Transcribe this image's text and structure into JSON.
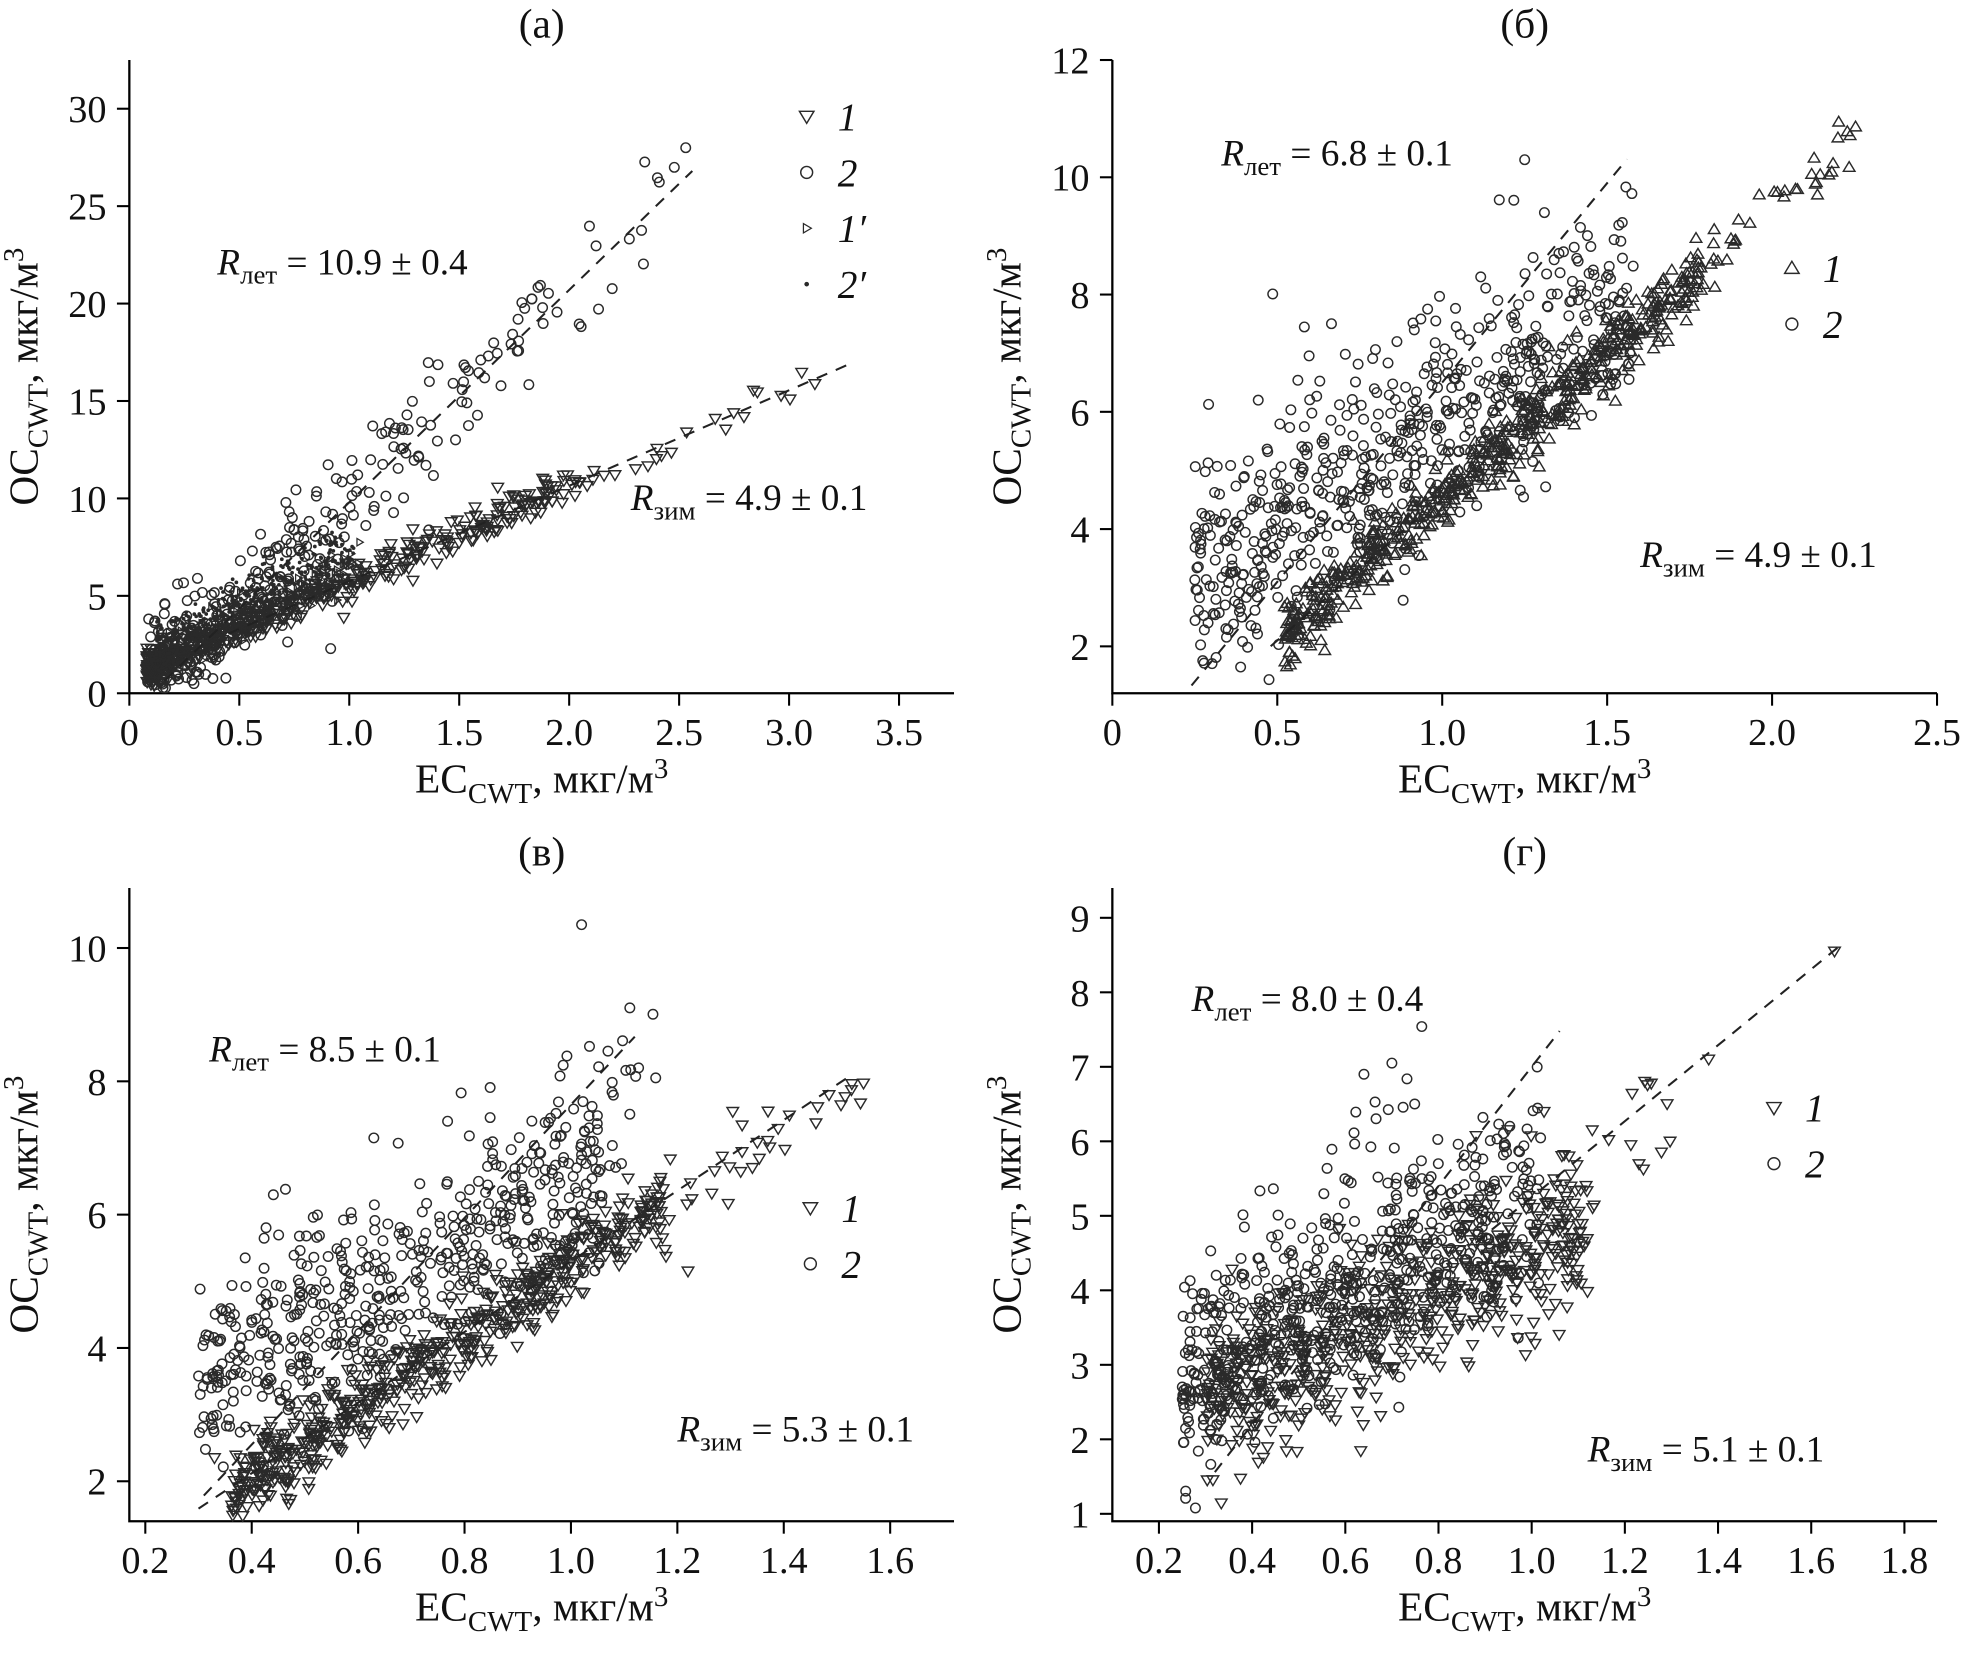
{
  "figure": {
    "colors": {
      "ink": "#111111",
      "marker": "#2a2a2a",
      "line": "#222222",
      "axis": "#000000"
    }
  },
  "chart_data": [
    {
      "type": "scatter",
      "name": "a",
      "title": "(а)",
      "xlabel": {
        "pre": "EC",
        "sub": "CWT",
        "post": ", мкг/м",
        "sup": "3"
      },
      "ylabel": {
        "pre": "OC",
        "sub": "CWT",
        "post": ", мкг/м",
        "sup": "3"
      },
      "xlim": [
        0,
        3.75
      ],
      "ylim": [
        0,
        32.5
      ],
      "xticks": [
        "0",
        "0.5",
        "1.0",
        "1.5",
        "2.0",
        "2.5",
        "3.0",
        "3.5"
      ],
      "yticks": [
        "0",
        "5",
        "10",
        "15",
        "20",
        "25",
        "30"
      ],
      "annotations": [
        {
          "prefix": "R",
          "sub": "лет",
          "rest": " = 10.9 ± 0.4",
          "x": 0.4,
          "y": 21.5
        },
        {
          "prefix": "R",
          "sub": "зим",
          "rest": " = 4.9 ± 0.1",
          "x": 2.28,
          "y": 9.4
        }
      ],
      "lines": [
        {
          "slope": 10.9,
          "intercept": -1.1,
          "x1": 0.16,
          "x2": 2.56
        },
        {
          "slope": 4.9,
          "intercept": 0.85,
          "x1": 0.45,
          "x2": 3.28
        }
      ],
      "legend": {
        "x": 3.08,
        "y": 29.6,
        "items": [
          {
            "marker": "triangle-down",
            "label": "1"
          },
          {
            "marker": "circle",
            "label": "2"
          },
          {
            "marker": "triangle-right",
            "label": "1′"
          },
          {
            "marker": "dot",
            "label": "2′"
          }
        ]
      },
      "clusters": [
        {
          "marker": "circle",
          "seed": 13,
          "n": 240,
          "x0": 0.08,
          "x1": 1.92,
          "bias": 1.8,
          "slope": 10.9,
          "intercept": -1.0,
          "noise": 1.5
        },
        {
          "marker": "circle",
          "seed": 14,
          "n": 14,
          "x0": 1.9,
          "x1": 2.56,
          "bias": 1,
          "slope": 10.9,
          "intercept": -1.6,
          "noise": 1.2
        },
        {
          "marker": "circle",
          "seed": 15,
          "n": 90,
          "x0": 0.1,
          "x1": 1.0,
          "bias": 1.4,
          "slope": 6.5,
          "intercept": 1.2,
          "noise": 1.4
        },
        {
          "marker": "triangle-down",
          "seed": 11,
          "n": 480,
          "x0": 0.08,
          "x1": 2.05,
          "bias": 1.7,
          "slope": 4.9,
          "intercept": 0.8,
          "noise": 0.45
        },
        {
          "marker": "triangle-down",
          "seed": 12,
          "n": 22,
          "x0": 2.05,
          "x1": 3.12,
          "bias": 1,
          "slope": 4.9,
          "intercept": 0.8,
          "noise": 0.35
        },
        {
          "marker": "triangle-right",
          "seed": 16,
          "n": 150,
          "x0": 0.15,
          "x1": 1.05,
          "bias": 1.3,
          "slope": 5.2,
          "intercept": 1.2,
          "noise": 0.55
        },
        {
          "marker": "dot",
          "seed": 17,
          "n": 480,
          "x0": 0.12,
          "x1": 1.02,
          "bias": 1.35,
          "slope": 5.8,
          "intercept": 1.5,
          "noise": 0.7
        }
      ],
      "extra_points": [
        {
          "marker": "circle",
          "x": 2.53,
          "y": 28.0
        }
      ]
    },
    {
      "type": "scatter",
      "name": "b",
      "title": "(б)",
      "xlabel": {
        "pre": "EC",
        "sub": "CWT",
        "post": ", мкг/м",
        "sup": "3"
      },
      "ylabel": {
        "pre": "OC",
        "sub": "CWT",
        "post": ", мкг/м",
        "sup": "3"
      },
      "xlim": [
        0,
        2.5
      ],
      "ylim": [
        1.2,
        12
      ],
      "xticks": [
        "0",
        "0.5",
        "1.0",
        "1.5",
        "2.0",
        "2.5"
      ],
      "yticks": [
        "2",
        "4",
        "6",
        "8",
        "10",
        "12"
      ],
      "annotations": [
        {
          "prefix": "R",
          "sub": "лет",
          "rest": " = 6.8 ± 0.1",
          "x": 0.33,
          "y": 10.2
        },
        {
          "prefix": "R",
          "sub": "зим",
          "rest": " = 4.9 ± 0.1",
          "x": 1.6,
          "y": 3.35
        }
      ],
      "lines": [
        {
          "slope": 6.8,
          "intercept": -0.3,
          "x1": 0.24,
          "x2": 1.56
        },
        {
          "slope": 4.9,
          "intercept": -0.35,
          "x1": 0.48,
          "x2": 0.92
        }
      ],
      "legend": {
        "x": 2.06,
        "y": 8.45,
        "items": [
          {
            "marker": "triangle-up",
            "label": "1"
          },
          {
            "marker": "circle",
            "label": "2"
          }
        ]
      },
      "clusters": [
        {
          "marker": "circle",
          "seed": 21,
          "n": 650,
          "x0": 0.25,
          "x1": 1.58,
          "bias": 1.15,
          "slope": 3.6,
          "intercept": 2.3,
          "noise": 0.95
        },
        {
          "marker": "triangle-up",
          "seed": 22,
          "n": 580,
          "x0": 0.52,
          "x1": 1.78,
          "bias": 1.1,
          "slope": 4.9,
          "intercept": -0.35,
          "noise": 0.28
        },
        {
          "marker": "triangle-up",
          "seed": 23,
          "n": 38,
          "x0": 1.78,
          "x1": 2.28,
          "bias": 1,
          "slope": 4.9,
          "intercept": -0.35,
          "noise": 0.3
        }
      ],
      "extra_points": [
        {
          "marker": "circle",
          "x": 1.25,
          "y": 10.3
        }
      ]
    },
    {
      "type": "scatter",
      "name": "v",
      "title": "(в)",
      "xlabel": {
        "pre": "EC",
        "sub": "CWT",
        "post": ", мкг/м",
        "sup": "3"
      },
      "ylabel": {
        "pre": "OC",
        "sub": "CWT",
        "post": ", мкг/м",
        "sup": "3"
      },
      "xlim": [
        0.17,
        1.72
      ],
      "ylim": [
        1.4,
        10.9
      ],
      "xticks": [
        "0.2",
        "0.4",
        "0.6",
        "0.8",
        "1.0",
        "1.2",
        "1.4",
        "1.6"
      ],
      "yticks": [
        "2",
        "4",
        "6",
        "8",
        "10"
      ],
      "annotations": [
        {
          "prefix": "R",
          "sub": "лет",
          "rest": " = 8.5 ± 0.1",
          "x": 0.32,
          "y": 8.3
        },
        {
          "prefix": "R",
          "sub": "зим",
          "rest": " = 5.3 ± 0.1",
          "x": 1.2,
          "y": 2.6
        }
      ],
      "lines": [
        {
          "slope": 8.5,
          "intercept": -0.85,
          "x1": 0.31,
          "x2": 1.12
        },
        {
          "slope": 5.3,
          "intercept": 0.0,
          "x1": 0.3,
          "x2": 1.53
        }
      ],
      "legend": {
        "x": 1.45,
        "y": 6.1,
        "items": [
          {
            "marker": "triangle-down",
            "label": "1"
          },
          {
            "marker": "circle",
            "label": "2"
          }
        ]
      },
      "clusters": [
        {
          "marker": "circle",
          "seed": 31,
          "n": 520,
          "x0": 0.3,
          "x1": 1.06,
          "bias": 1.1,
          "slope": 4.2,
          "intercept": 2.2,
          "noise": 0.8
        },
        {
          "marker": "circle",
          "seed": 32,
          "n": 55,
          "x0": 0.8,
          "x1": 1.16,
          "bias": 1,
          "slope": 8.5,
          "intercept": -1.2,
          "noise": 0.7
        },
        {
          "marker": "triangle-down",
          "seed": 33,
          "n": 620,
          "x0": 0.36,
          "x1": 1.18,
          "bias": 1.15,
          "slope": 5.3,
          "intercept": -0.1,
          "noise": 0.3
        },
        {
          "marker": "triangle-down",
          "seed": 34,
          "n": 32,
          "x0": 1.18,
          "x1": 1.56,
          "bias": 1,
          "slope": 5.3,
          "intercept": -0.15,
          "noise": 0.35
        }
      ],
      "extra_points": [
        {
          "marker": "circle",
          "x": 1.02,
          "y": 10.35
        },
        {
          "marker": "triangle-down",
          "x": 0.33,
          "y": 2.35
        },
        {
          "marker": "triangle-down",
          "x": 1.22,
          "y": 5.15
        }
      ]
    },
    {
      "type": "scatter",
      "name": "g",
      "title": "(г)",
      "xlabel": {
        "pre": "EC",
        "sub": "CWT",
        "post": ", мкг/м",
        "sup": "3"
      },
      "ylabel": {
        "pre": "OC",
        "sub": "CWT",
        "post": ", мкг/м",
        "sup": "3"
      },
      "xlim": [
        0.1,
        1.87
      ],
      "ylim": [
        0.9,
        9.4
      ],
      "xticks": [
        "0.2",
        "0.4",
        "0.6",
        "0.8",
        "1.0",
        "1.2",
        "1.4",
        "1.6",
        "1.8"
      ],
      "yticks": [
        "1",
        "2",
        "3",
        "4",
        "5",
        "6",
        "7",
        "8",
        "9"
      ],
      "annotations": [
        {
          "prefix": "R",
          "sub": "лет",
          "rest": " = 8.0 ± 0.4",
          "x": 0.27,
          "y": 7.75
        },
        {
          "prefix": "R",
          "sub": "зим",
          "rest": " = 5.1 ± 0.1",
          "x": 1.12,
          "y": 1.7
        }
      ],
      "lines": [
        {
          "slope": 8.0,
          "intercept": -1.0,
          "x1": 0.32,
          "x2": 1.06
        },
        {
          "slope": 5.1,
          "intercept": 0.15,
          "x1": 0.88,
          "x2": 1.66
        }
      ],
      "legend": {
        "x": 1.52,
        "y": 6.45,
        "items": [
          {
            "marker": "triangle-down",
            "label": "1"
          },
          {
            "marker": "circle",
            "label": "2"
          }
        ]
      },
      "clusters": [
        {
          "marker": "circle",
          "seed": 41,
          "n": 560,
          "x0": 0.25,
          "x1": 1.02,
          "bias": 1.2,
          "slope": 3.2,
          "intercept": 2.1,
          "noise": 0.72
        },
        {
          "marker": "circle",
          "seed": 42,
          "n": 22,
          "x0": 0.56,
          "x1": 0.78,
          "bias": 1,
          "slope": 5.5,
          "intercept": 2.2,
          "noise": 0.55
        },
        {
          "marker": "triangle-down",
          "seed": 43,
          "n": 620,
          "x0": 0.3,
          "x1": 1.12,
          "bias": 1.15,
          "slope": 2.9,
          "intercept": 1.6,
          "noise": 0.55
        },
        {
          "marker": "triangle-down",
          "seed": 44,
          "n": 26,
          "x0": 0.95,
          "x1": 1.3,
          "bias": 1,
          "slope": 5.1,
          "intercept": -0.2,
          "noise": 0.4
        }
      ],
      "extra_points": [
        {
          "marker": "circle",
          "x": 0.64,
          "y": 6.9
        },
        {
          "marker": "circle",
          "x": 0.7,
          "y": 7.05
        },
        {
          "marker": "triangle-down",
          "x": 1.08,
          "y": 5.8
        },
        {
          "marker": "triangle-down",
          "x": 1.13,
          "y": 6.15
        },
        {
          "marker": "triangle-down",
          "x": 1.38,
          "y": 7.1
        },
        {
          "marker": "triangle-down",
          "x": 1.65,
          "y": 8.55
        }
      ]
    }
  ]
}
